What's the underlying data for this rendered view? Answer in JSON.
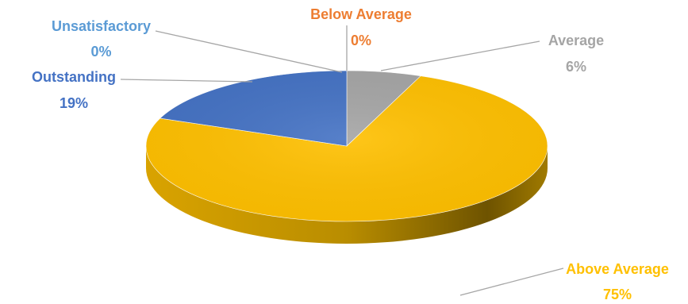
{
  "chart_data": {
    "type": "pie",
    "title": "",
    "slices": [
      {
        "name": "Unsatisfactory",
        "value": 0,
        "label": "0%",
        "color": "#5b9bd5"
      },
      {
        "name": "Below Average",
        "value": 0,
        "label": "0%",
        "color": "#ed7d31"
      },
      {
        "name": "Average",
        "value": 6,
        "label": "6%",
        "color": "#a5a5a5"
      },
      {
        "name": "Above Average",
        "value": 75,
        "label": "75%",
        "color": "#ffc000"
      },
      {
        "name": "Outstanding",
        "value": 19,
        "label": "19%",
        "color": "#4472c4"
      }
    ],
    "style": "3d-pie",
    "legend": "none"
  }
}
